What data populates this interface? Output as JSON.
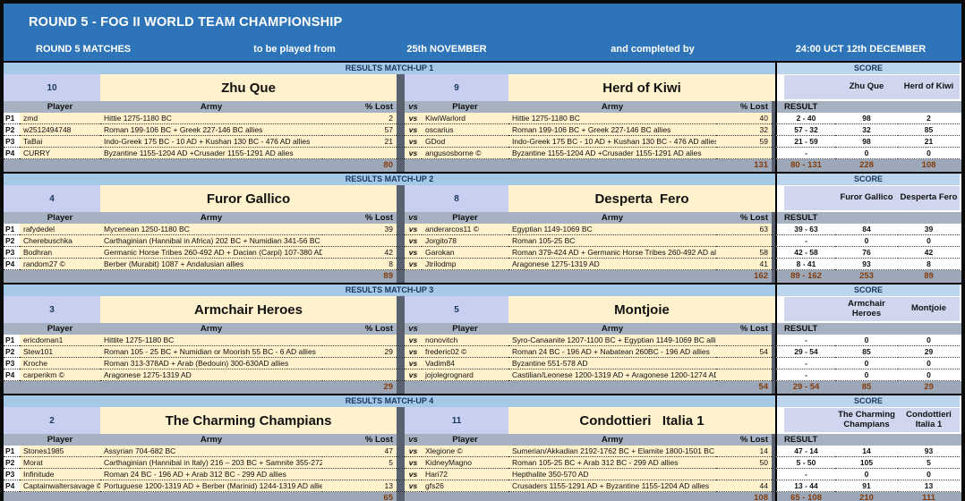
{
  "title": "ROUND 5 - FOG II WORLD TEAM CHAMPIONSHIP",
  "subtitle": {
    "matches_label": "ROUND 5 MATCHES",
    "played_from_label": "to be played from",
    "played_from_value": "25th NOVEMBER",
    "completed_by_label": "and completed by",
    "completed_by_value": "24:00 UCT 12th DECEMBER"
  },
  "labels": {
    "score": "SCORE",
    "result": "RESULT",
    "vs": "vs",
    "player": "Player",
    "army": "Army",
    "lost": "% Lost"
  },
  "p_labels": [
    "P1",
    "P2",
    "P3",
    "P4"
  ],
  "matchups": [
    {
      "band": "RESULTS MATCH-UP 1",
      "home": {
        "number": "10",
        "name": "Zhu Que",
        "score_name": "Zhu Que",
        "total": "80",
        "players": [
          {
            "name": "zmd",
            "army": "Hittie 1275-1180 BC",
            "lost": "2"
          },
          {
            "name": "w2512494748",
            "army": "Roman 199-106 BC + Greek 227-146 BC allies",
            "lost": "57"
          },
          {
            "name": "TaBai",
            "army": "Indo-Greek 175 BC - 10 AD + Kushan 130 BC - 476 AD allies",
            "lost": "21"
          },
          {
            "name": "CURRY",
            "army": "Byzantine 1155-1204 AD +Crusader 1155-1291 AD alies",
            "lost": ""
          }
        ]
      },
      "away": {
        "number": "9",
        "name": "Herd of Kiwi",
        "score_name": "Herd of Kiwi",
        "total": "131",
        "players": [
          {
            "name": "KiwiWarlord",
            "army": "Hittie 1275-1180 BC",
            "lost": "40"
          },
          {
            "name": "oscarius",
            "army": "Roman 199-106 BC + Greek 227-146 BC allies",
            "lost": "32"
          },
          {
            "name": "GDod",
            "army": "Indo-Greek 175 BC - 10 AD + Kushan 130 BC - 476 AD allies",
            "lost": "59"
          },
          {
            "name": "angusosborne ©",
            "army": "Byzantine 1155-1204 AD +Crusader 1155-1291 AD alies",
            "lost": ""
          }
        ]
      },
      "score": {
        "rows": [
          {
            "result": "2 - 40",
            "home": "98",
            "away": "2"
          },
          {
            "result": "57 - 32",
            "home": "32",
            "away": "85"
          },
          {
            "result": "21 - 59",
            "home": "98",
            "away": "21"
          },
          {
            "result": "-",
            "home": "0",
            "away": "0"
          }
        ],
        "result_total": "80 - 131",
        "home_total": "228",
        "away_total": "108"
      }
    },
    {
      "band": "RESULTS MATCH-UP 2",
      "home": {
        "number": "4",
        "name": "Furor Gallico",
        "score_name": "Furor Gallico",
        "total": "89",
        "players": [
          {
            "name": "rafydedel",
            "army": "Mycenean 1250-1180 BC",
            "lost": "39"
          },
          {
            "name": "Cherebuschka",
            "army": "Carthaginian (Hannibal in Africa) 202 BC + Numidian 341-56 BC allies",
            "lost": ""
          },
          {
            "name": "Bodhran",
            "army": "Germanic Horse Tribes 260-492 AD + Dacian (Carpi) 107-380 AD allies",
            "lost": "42"
          },
          {
            "name": "random27 ©",
            "army": "Berber (Murabit) 1087 + Andalusian allies",
            "lost": "8"
          }
        ]
      },
      "away": {
        "number": "8",
        "name": "Desperta  Fero",
        "score_name": "Desperta Fero",
        "total": "162",
        "players": [
          {
            "name": "anderarcos11 ©",
            "army": "Egyptian 1149-1069 BC",
            "lost": "63"
          },
          {
            "name": "Jorgito78",
            "army": "Roman 105-25 BC",
            "lost": ""
          },
          {
            "name": "Garokan",
            "army": "Roman 379-424 AD + Germanic Horse Tribes 260-492 AD allies",
            "lost": "58"
          },
          {
            "name": "Jtrilodmp",
            "army": "Aragonese 1275-1319 AD",
            "lost": "41"
          }
        ]
      },
      "score": {
        "rows": [
          {
            "result": "39 - 63",
            "home": "84",
            "away": "39"
          },
          {
            "result": "-",
            "home": "0",
            "away": "0"
          },
          {
            "result": "42 - 58",
            "home": "76",
            "away": "42"
          },
          {
            "result": "8 - 41",
            "home": "93",
            "away": "8"
          }
        ],
        "result_total": "89 - 162",
        "home_total": "253",
        "away_total": "89"
      }
    },
    {
      "band": "RESULTS MATCH-UP 3",
      "home": {
        "number": "3",
        "name": "Armchair Heroes",
        "score_name": "Armchair Heroes",
        "total": "29",
        "players": [
          {
            "name": "ericdoman1",
            "army": "Hittite 1275-1180 BC",
            "lost": ""
          },
          {
            "name": "Stew101",
            "army": "Roman 105 - 25 BC + Numidian or Moorish 55 BC - 6 AD allies",
            "lost": "29"
          },
          {
            "name": "Kroche",
            "army": "Roman 313-378AD + Arab (Bedouin) 300-630AD allies",
            "lost": ""
          },
          {
            "name": "carpenkm ©",
            "army": "Aragonese 1275-1319 AD",
            "lost": ""
          }
        ]
      },
      "away": {
        "number": "5",
        "name": "Montjoie",
        "score_name": "Montjoie",
        "total": "54",
        "players": [
          {
            "name": "nonovitch",
            "army": "Syro-Canaanite 1207-1100 BC + Egyptian 1149-1069 BC allies",
            "lost": ""
          },
          {
            "name": "frederic02 ©",
            "army": "Roman 24 BC - 196 AD + Nabatean 260BC - 196 AD allies",
            "lost": "54"
          },
          {
            "name": "Vadim84",
            "army": "Byzantine 551-578 AD",
            "lost": ""
          },
          {
            "name": "jojolegrognard",
            "army": "Castilian/Leonese 1200-1319 AD + Aragonese 1200-1274 AD allies",
            "lost": ""
          }
        ]
      },
      "score": {
        "rows": [
          {
            "result": "-",
            "home": "0",
            "away": "0"
          },
          {
            "result": "29 - 54",
            "home": "85",
            "away": "29"
          },
          {
            "result": "-",
            "home": "0",
            "away": "0"
          },
          {
            "result": "-",
            "home": "0",
            "away": "0"
          }
        ],
        "result_total": "29 - 54",
        "home_total": "85",
        "away_total": "29"
      }
    },
    {
      "band": "RESULTS MATCH-UP 4",
      "home": {
        "number": "2",
        "name": "The Charming Champians",
        "score_name": "The Charming Champians",
        "total": "65",
        "players": [
          {
            "name": "Stones1985",
            "army": "Assyrian 704-682 BC",
            "lost": "47"
          },
          {
            "name": "Morat",
            "army": "Carthaginian (Hannibal in Italy) 216 – 203 BC + Samnite 355-272 BC al",
            "lost": "5"
          },
          {
            "name": "Infinitude",
            "army": "Roman 24 BC - 196 AD + Arab 312 BC - 299 AD allies",
            "lost": ""
          },
          {
            "name": "Captainwaltersavage ©",
            "army": "Portuguese 1200-1319 AD + Berber (Marinid) 1244-1319 AD allies",
            "lost": "13"
          }
        ]
      },
      "away": {
        "number": "11",
        "name": "Condottieri   Italia 1",
        "score_name": "Condottieri Italia 1",
        "total": "108",
        "players": [
          {
            "name": "Xlegione ©",
            "army": "Sumerian/Akkadian 2192-1762  BC + Elamite 1800-1501 BC allies",
            "lost": "14"
          },
          {
            "name": "KidneyMagno",
            "army": "Roman 105-25 BC + Arab 312 BC - 299 AD allies",
            "lost": "50"
          },
          {
            "name": "Hari72",
            "army": "Hepthalite 350-570 AD",
            "lost": ""
          },
          {
            "name": "gfs26",
            "army": "Crusaders 1155-1291 AD + Byzantine 1155-1204 AD allies",
            "lost": "44"
          }
        ]
      },
      "score": {
        "rows": [
          {
            "result": "47 - 14",
            "home": "14",
            "away": "93"
          },
          {
            "result": "5 - 50",
            "home": "105",
            "away": "5"
          },
          {
            "result": "-",
            "home": "0",
            "away": "0"
          },
          {
            "result": "13 - 44",
            "home": "91",
            "away": "13"
          }
        ],
        "result_total": "65 - 108",
        "home_total": "210",
        "away_total": "111"
      }
    }
  ]
}
